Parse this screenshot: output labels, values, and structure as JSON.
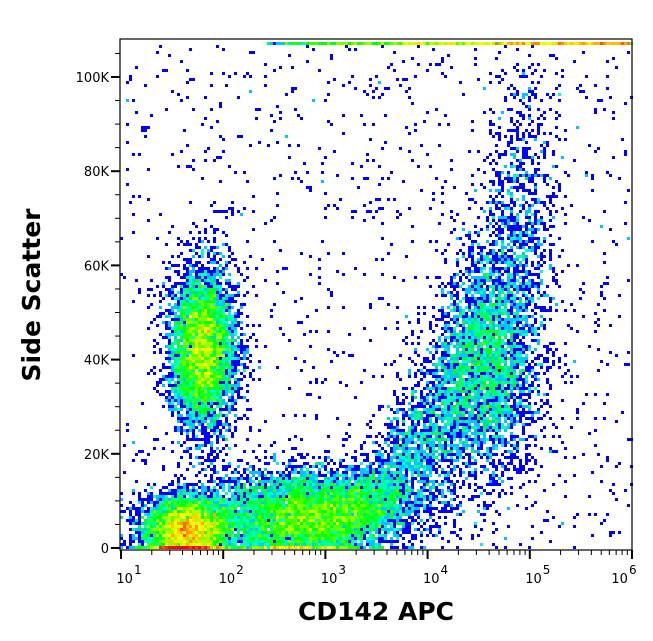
{
  "chart_data": {
    "type": "heatmap",
    "subtype": "flow-cytometry-density-scatter",
    "xlabel": "CD142 APC",
    "ylabel": "Side Scatter",
    "x_scale": "log",
    "xlim_log10": [
      1,
      6
    ],
    "x_ticks": [
      {
        "base": "10",
        "exp": "1"
      },
      {
        "base": "10",
        "exp": "2"
      },
      {
        "base": "10",
        "exp": "3"
      },
      {
        "base": "10",
        "exp": "4"
      },
      {
        "base": "10",
        "exp": "5"
      },
      {
        "base": "10",
        "exp": "6"
      }
    ],
    "ylim": [
      0,
      107000
    ],
    "y_ticks": [
      {
        "value": 0,
        "label": "0"
      },
      {
        "value": 20000,
        "label": "20K"
      },
      {
        "value": 40000,
        "label": "40K"
      },
      {
        "value": 60000,
        "label": "60K"
      },
      {
        "value": 80000,
        "label": "80K"
      },
      {
        "value": 100000,
        "label": "100K"
      }
    ],
    "colormap": [
      "#0000ff",
      "#00ffff",
      "#00ff00",
      "#ffff00",
      "#ff0000"
    ],
    "populations": [
      {
        "name": "low-CD142 high-SSC",
        "log10_x_mean": 1.8,
        "log10_x_sd": 0.16,
        "y_mean": 42000,
        "y_sd": 8500,
        "n": 5500
      },
      {
        "name": "low-CD142 low-SSC",
        "log10_x_mean": 1.65,
        "log10_x_sd": 0.22,
        "y_mean": 4000,
        "y_sd": 3500,
        "n": 5000
      },
      {
        "name": "low-SSC band",
        "log10_x_mean": 2.8,
        "log10_x_sd": 0.5,
        "y_mean": 8000,
        "y_sd": 4500,
        "n": 5000
      },
      {
        "name": "CD142 positive curve",
        "log10_x_start": 2.3,
        "log10_x_end": 5.1,
        "y_start": 2000,
        "y_end": 77000,
        "n": 6000
      },
      {
        "name": "CD142 positive high-SSC",
        "log10_x_mean": 4.6,
        "log10_x_sd": 0.25,
        "y_mean": 38000,
        "y_sd": 12000,
        "n": 2500
      },
      {
        "name": "SSC saturated",
        "log10_x_range": [
          2.4,
          6
        ],
        "y_value": 107000,
        "n": 1500
      },
      {
        "name": "background",
        "n": 1200
      }
    ]
  }
}
